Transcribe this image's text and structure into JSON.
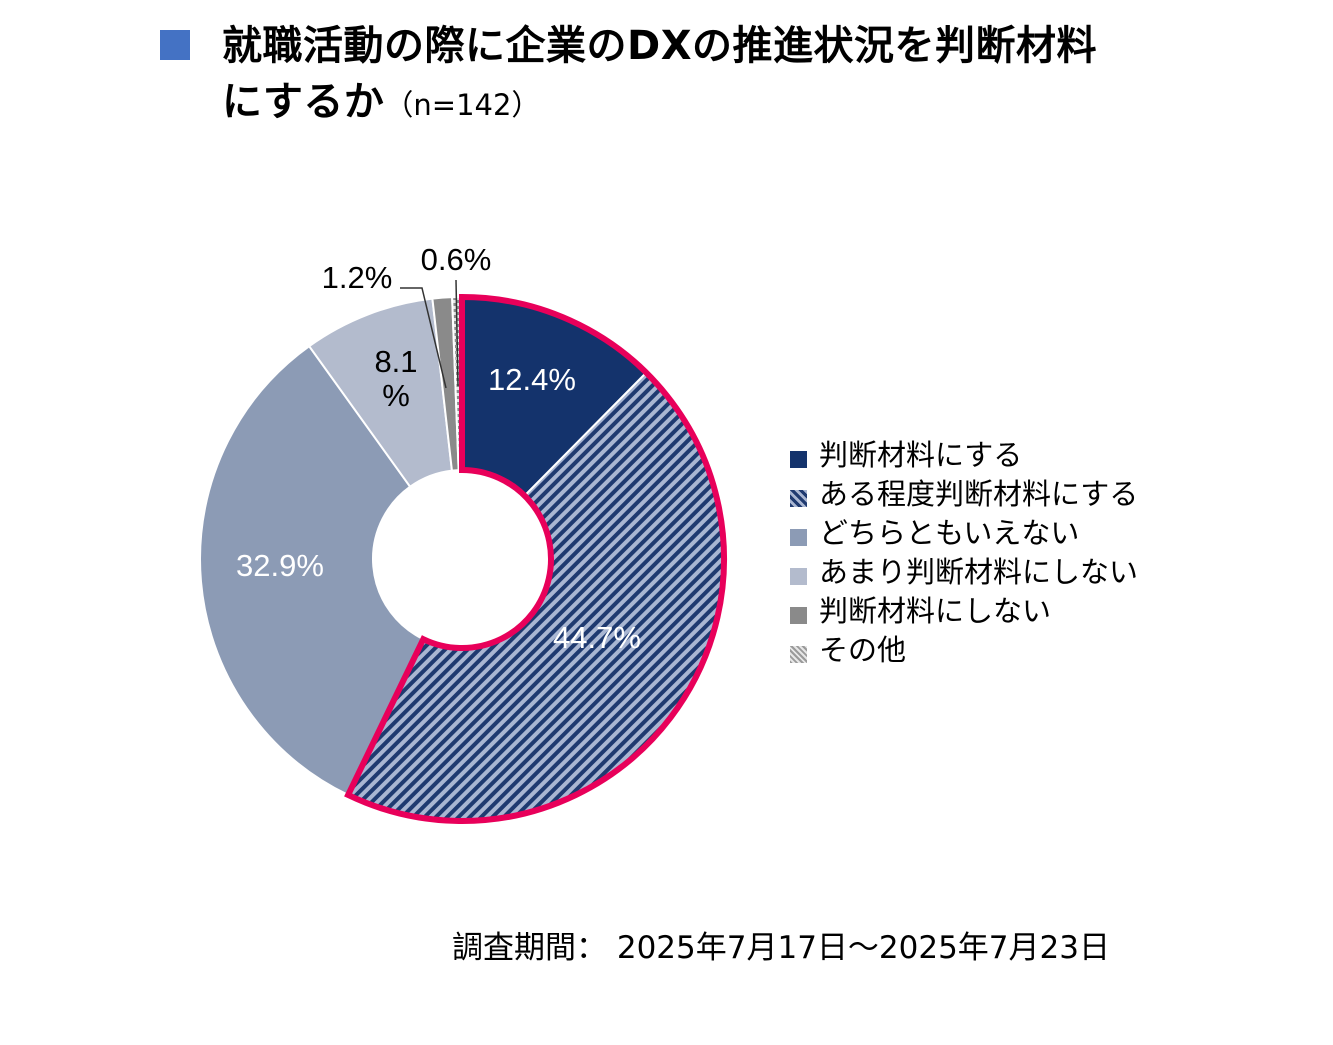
{
  "header": {
    "title_line1": "就職活動の際に企業のDXの推進状況を判断材料",
    "title_line2": "にするか",
    "sample_size": "（n=142）"
  },
  "chart_data": {
    "type": "pie",
    "style": "donut",
    "categories": [
      "判断材料にする",
      "ある程度判断材料にする",
      "どちらともいえない",
      "あまり判断材料にしない",
      "判断材料にしない",
      "その他"
    ],
    "values": [
      12.4,
      44.7,
      32.9,
      8.1,
      1.2,
      0.6
    ],
    "labels": [
      "12.4%",
      "44.7%",
      "32.9%",
      "8.1\n%",
      "1.2%",
      "0.6%"
    ],
    "colors": [
      "#14336c",
      "#6f82a8",
      "#8c9bb5",
      "#b3bbcd",
      "#8a8a8a",
      "#d0d0d0"
    ],
    "patterns": [
      "solid",
      "diagonal-stripes",
      "solid",
      "solid",
      "solid",
      "checker"
    ],
    "highlighted": [
      "判断材料にする",
      "ある程度判断材料にする"
    ],
    "highlight_color": "#e8005a",
    "legend_position": "right"
  },
  "footer": {
    "period": "調査期間： 2025年7月17日～2025年7月23日"
  }
}
